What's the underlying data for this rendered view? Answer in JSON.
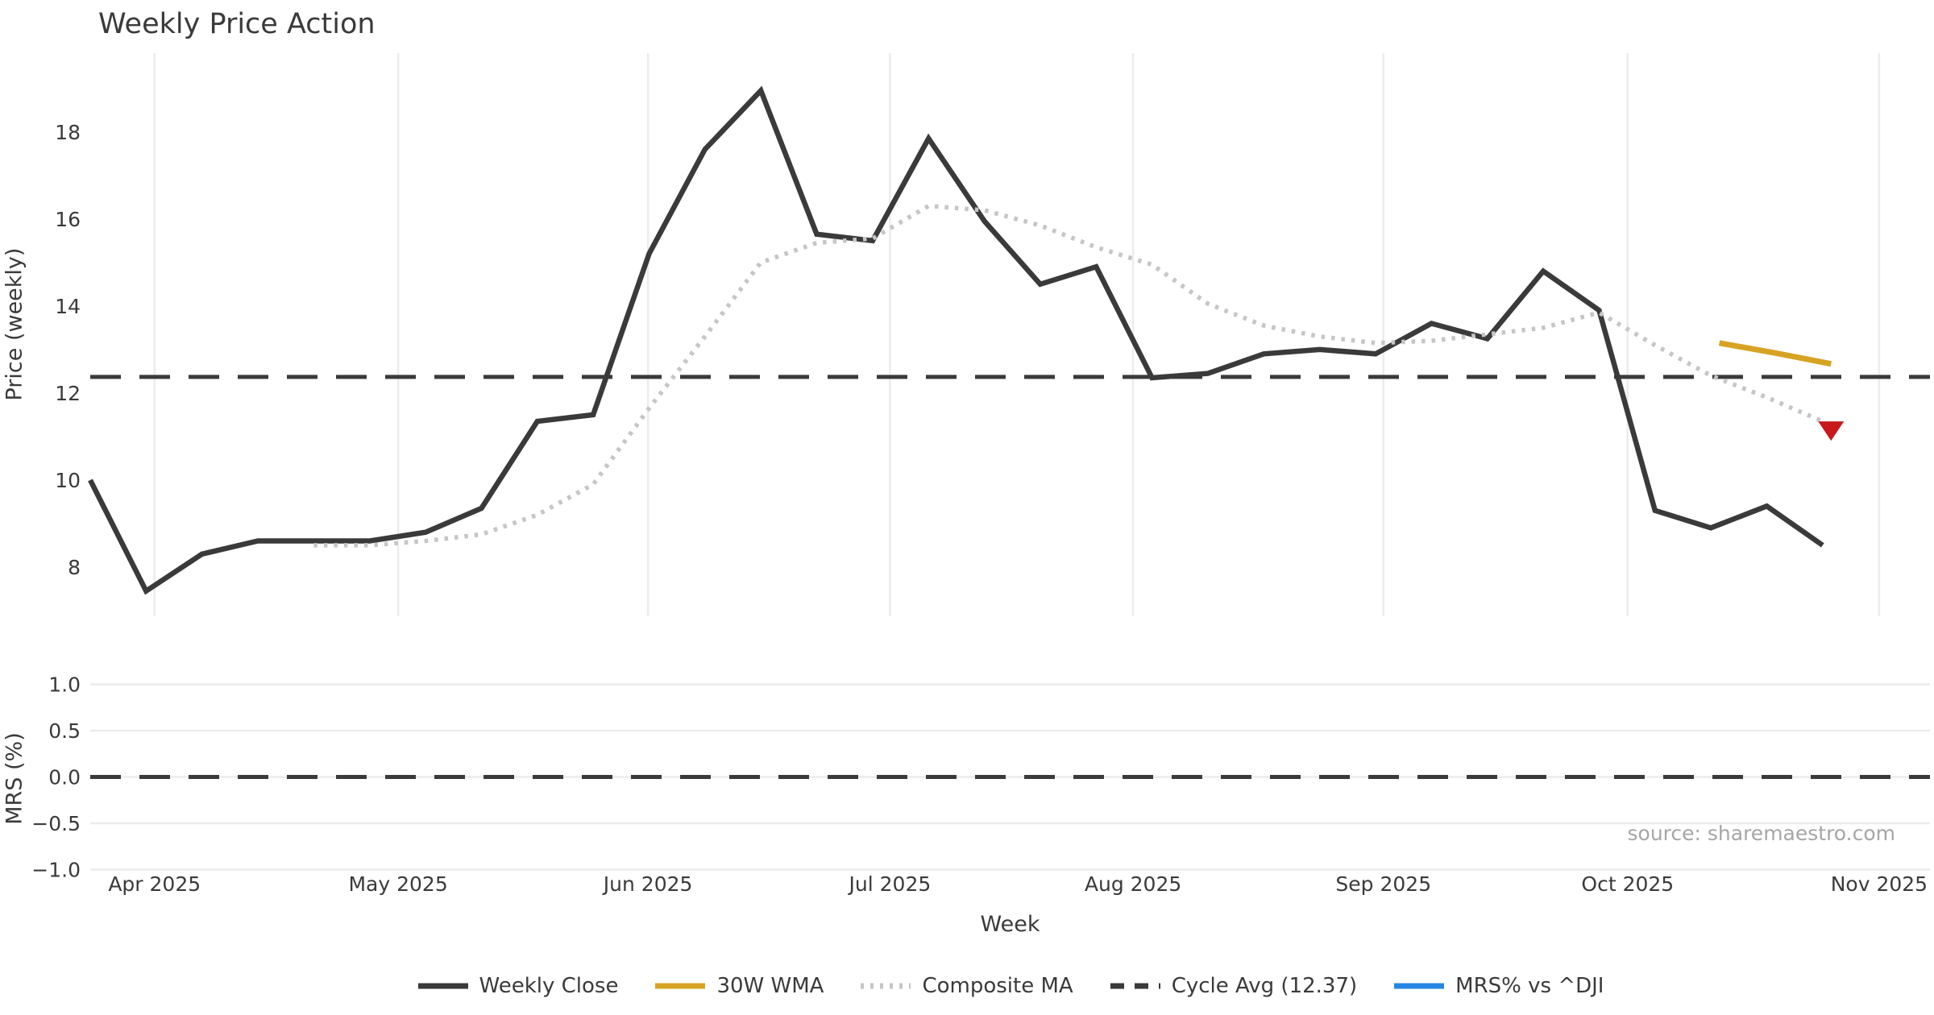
{
  "title": "Weekly Price Action",
  "source_note": "source: sharemaestro.com",
  "xlabel": "Week",
  "colors": {
    "weekly_close": "#3a3a3a",
    "wma_30w": "#d7a322",
    "composite_ma": "#c6c6c6",
    "cycle_avg": "#3a3a3a",
    "mrs_line": "#2587e3",
    "marker_down": "#c8191c",
    "gridline": "#ececec",
    "text": "#3a3a3a",
    "muted_text": "#a6a6a6"
  },
  "legend": [
    {
      "label": "Weekly Close",
      "swatch": "solid",
      "color": "#3a3a3a"
    },
    {
      "label": "30W WMA",
      "swatch": "solid",
      "color": "#d7a322"
    },
    {
      "label": "Composite MA",
      "swatch": "dotted",
      "color": "#c6c6c6"
    },
    {
      "label": "Cycle Avg (12.37)",
      "swatch": "dashed",
      "color": "#3a3a3a"
    },
    {
      "label": "MRS% vs ^DJI",
      "swatch": "solid",
      "color": "#2587e3"
    }
  ],
  "chart_data": [
    {
      "type": "line",
      "panel": "price",
      "title": "Weekly Price Action",
      "ylabel": "Price (weekly)",
      "xlabel": "Week",
      "grid": "vertical-months-only",
      "yticks": [
        8,
        10,
        12,
        14,
        16,
        18
      ],
      "ylim": [
        6.87,
        19.81
      ],
      "xlim_weeks": [
        -0.05,
        32.93
      ],
      "month_ticks": [
        {
          "label": "Apr 2025",
          "week_pos": 1.15
        },
        {
          "label": "May 2025",
          "week_pos": 5.51
        },
        {
          "label": "Jun 2025",
          "week_pos": 9.98
        },
        {
          "label": "Jul 2025",
          "week_pos": 14.31
        },
        {
          "label": "Aug 2025",
          "week_pos": 18.66
        },
        {
          "label": "Sep 2025",
          "week_pos": 23.14
        },
        {
          "label": "Oct 2025",
          "week_pos": 27.51
        },
        {
          "label": "Nov 2025",
          "week_pos": 32.01
        }
      ],
      "series": [
        {
          "name": "Weekly Close",
          "style": "solid",
          "width": 6.5,
          "color": "#3a3a3a",
          "points": [
            [
              0,
              10.0
            ],
            [
              1,
              7.45
            ],
            [
              2,
              8.3
            ],
            [
              3,
              8.6
            ],
            [
              4,
              8.6
            ],
            [
              5,
              8.6
            ],
            [
              6,
              8.8
            ],
            [
              7,
              9.35
            ],
            [
              8,
              11.35
            ],
            [
              9,
              11.5
            ],
            [
              10,
              15.2
            ],
            [
              11,
              17.6
            ],
            [
              12,
              18.95
            ],
            [
              13,
              15.65
            ],
            [
              14,
              15.5
            ],
            [
              15,
              17.85
            ],
            [
              16,
              15.95
            ],
            [
              17,
              14.5
            ],
            [
              18,
              14.9
            ],
            [
              19,
              12.35
            ],
            [
              20,
              12.45
            ],
            [
              21,
              12.9
            ],
            [
              22,
              13.0
            ],
            [
              23,
              12.9
            ],
            [
              24,
              13.6
            ],
            [
              25,
              13.25
            ],
            [
              26,
              14.8
            ],
            [
              27,
              13.9
            ],
            [
              28,
              9.3
            ],
            [
              29,
              8.9
            ],
            [
              30,
              9.4
            ],
            [
              31,
              8.5
            ]
          ]
        },
        {
          "name": "Composite MA",
          "style": "dotted",
          "width": 5.5,
          "color": "#c6c6c6",
          "points": [
            [
              4,
              8.5
            ],
            [
              5,
              8.5
            ],
            [
              6,
              8.6
            ],
            [
              7,
              8.75
            ],
            [
              8,
              9.2
            ],
            [
              9,
              9.9
            ],
            [
              10,
              11.65
            ],
            [
              11,
              13.3
            ],
            [
              12,
              15.0
            ],
            [
              13,
              15.45
            ],
            [
              14,
              15.55
            ],
            [
              15,
              16.3
            ],
            [
              16,
              16.2
            ],
            [
              17,
              15.85
            ],
            [
              18,
              15.35
            ],
            [
              19,
              14.95
            ],
            [
              20,
              14.05
            ],
            [
              21,
              13.55
            ],
            [
              22,
              13.3
            ],
            [
              23,
              13.15
            ],
            [
              24,
              13.2
            ],
            [
              25,
              13.35
            ],
            [
              26,
              13.5
            ],
            [
              27,
              13.85
            ],
            [
              28,
              13.1
            ],
            [
              29,
              12.4
            ],
            [
              30,
              11.9
            ],
            [
              31,
              11.35
            ]
          ]
        },
        {
          "name": "30W WMA",
          "style": "solid",
          "width": 7,
          "color": "#d7a322",
          "points": [
            [
              29.15,
              13.15
            ],
            [
              30.15,
              12.92
            ],
            [
              31.15,
              12.67
            ]
          ]
        }
      ],
      "hline": {
        "name": "Cycle Avg",
        "value": 12.37,
        "style": "dashed",
        "color": "#3a3a3a"
      },
      "markers": [
        {
          "shape": "triangle-down",
          "week": 31.15,
          "value": 11.18,
          "color": "#c8191c"
        }
      ]
    },
    {
      "type": "line",
      "panel": "mrs",
      "ylabel": "MRS (%)",
      "grid": "horizontal-only",
      "ytick_labels": [
        "1.0",
        "0.5",
        "0.0",
        "−0.5",
        "−1.0"
      ],
      "ytick_values": [
        1.0,
        0.5,
        0.0,
        -0.5,
        -1.0
      ],
      "ylim": [
        -1.1,
        1.1
      ],
      "hline": {
        "name": "zero",
        "value": 0.0,
        "style": "dashed",
        "color": "#3a3a3a"
      },
      "series": [
        {
          "name": "MRS% vs ^DJI",
          "style": "solid",
          "width": 6,
          "color": "#2587e3",
          "points": []
        }
      ]
    }
  ]
}
